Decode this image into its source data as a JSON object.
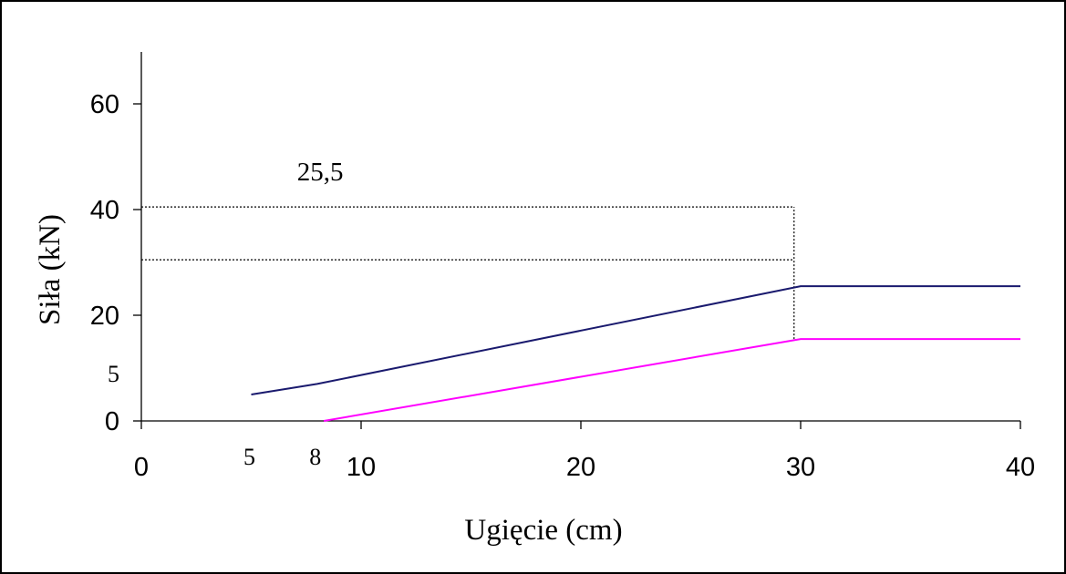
{
  "chart_data": {
    "type": "line",
    "xlabel": "Ugięcie (cm)",
    "ylabel": "Siła (kN)",
    "xlim": [
      0,
      40
    ],
    "ylim": [
      0,
      70
    ],
    "x_ticks": [
      0,
      10,
      20,
      30,
      40
    ],
    "y_ticks": [
      0,
      20,
      40,
      60
    ],
    "extra_x_labels": [
      5,
      8
    ],
    "extra_y_labels": [
      5
    ],
    "grid": false,
    "series": [
      {
        "color": "#1a1a6e",
        "x": [
          5,
          8,
          30,
          40
        ],
        "y": [
          5,
          7,
          25.5,
          25.5
        ]
      },
      {
        "color": "#ff00ff",
        "x": [
          8.3,
          30,
          40
        ],
        "y": [
          0,
          15.5,
          15.5
        ]
      }
    ],
    "reference_lines": [
      {
        "orientation": "horizontal",
        "y": 40.5,
        "x": [
          0,
          29.7
        ]
      },
      {
        "orientation": "horizontal",
        "y": 30.5,
        "x": [
          0,
          29.7
        ]
      },
      {
        "orientation": "vertical",
        "x": 29.7,
        "y": [
          15.5,
          40.5
        ]
      }
    ],
    "annotations": [
      {
        "text": "25,5",
        "x": 7,
        "y": 45
      }
    ]
  }
}
